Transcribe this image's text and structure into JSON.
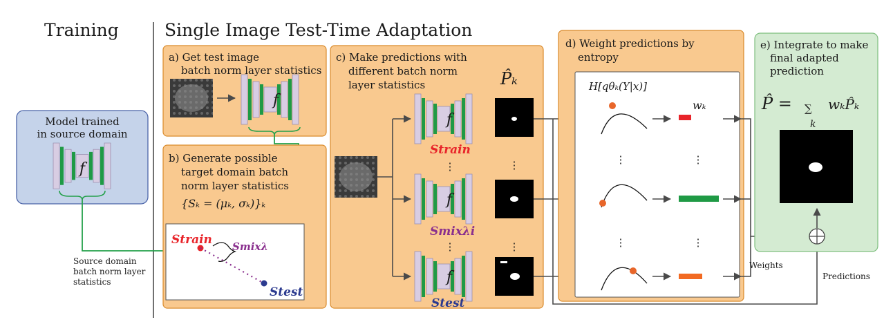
{
  "headers": {
    "training": "Training",
    "adaptation": "Single Image Test-Time Adaptation"
  },
  "model_box": {
    "line1": "Model trained",
    "line2": "in source domain",
    "f": "f"
  },
  "source_stats_label": [
    "Source domain",
    "batch norm layer",
    "statistics"
  ],
  "panel_a": {
    "line1": "a) Get test image",
    "line2": "batch norm layer statistics",
    "f": "f"
  },
  "panel_b": {
    "line1": "b) Generate possible",
    "line2": "target domain batch",
    "line3": "norm layer statistics",
    "formula": "{Sₖ = (μₖ, σₖ)}ₖ",
    "s_train": "Strain",
    "s_mix": "Smixλ",
    "s_test": "Stest"
  },
  "panel_c": {
    "line1": "c) Make predictions with",
    "line2": "different batch norm",
    "line3": "layer statistics",
    "p_hat_k": "P̂ₖ",
    "f": "f",
    "s_train": "Strain",
    "s_mix": "Smixλi",
    "s_test": "Stest",
    "vdots": "⋮"
  },
  "panel_d": {
    "line1": "d) Weight predictions by",
    "line2": "entropy",
    "entropy": "H[qθₖ(Y|x)]",
    "w_k": "wₖ",
    "vdots": "⋮",
    "weights_label": "Weights"
  },
  "panel_e": {
    "line1": "e) Integrate to make",
    "line2": "final adapted",
    "line3": "prediction",
    "formula_lhs": "P̂ = ",
    "formula_sum": "∑",
    "formula_rhs": "wₖP̂ₖ",
    "formula_sub": "k",
    "predictions_label": "Predictions",
    "oplus": "⊕"
  },
  "colors": {
    "orange_panel": "#f9c98f",
    "orange_border": "#d98a2b",
    "green_panel": "#d4ebd2",
    "green_border": "#7fbf7f",
    "blue_panel": "#c5d3ea",
    "blue_border": "#4a63a8",
    "net_green": "#1f9a45",
    "net_lavender": "#d8cde3",
    "red": "#e8242a",
    "purple": "#8a2f8e",
    "navy": "#2b3a8f",
    "orange_dot": "#e8662a",
    "weight_red": "#e8242a",
    "weight_green": "#1f9a45",
    "weight_orange": "#f26a22"
  }
}
